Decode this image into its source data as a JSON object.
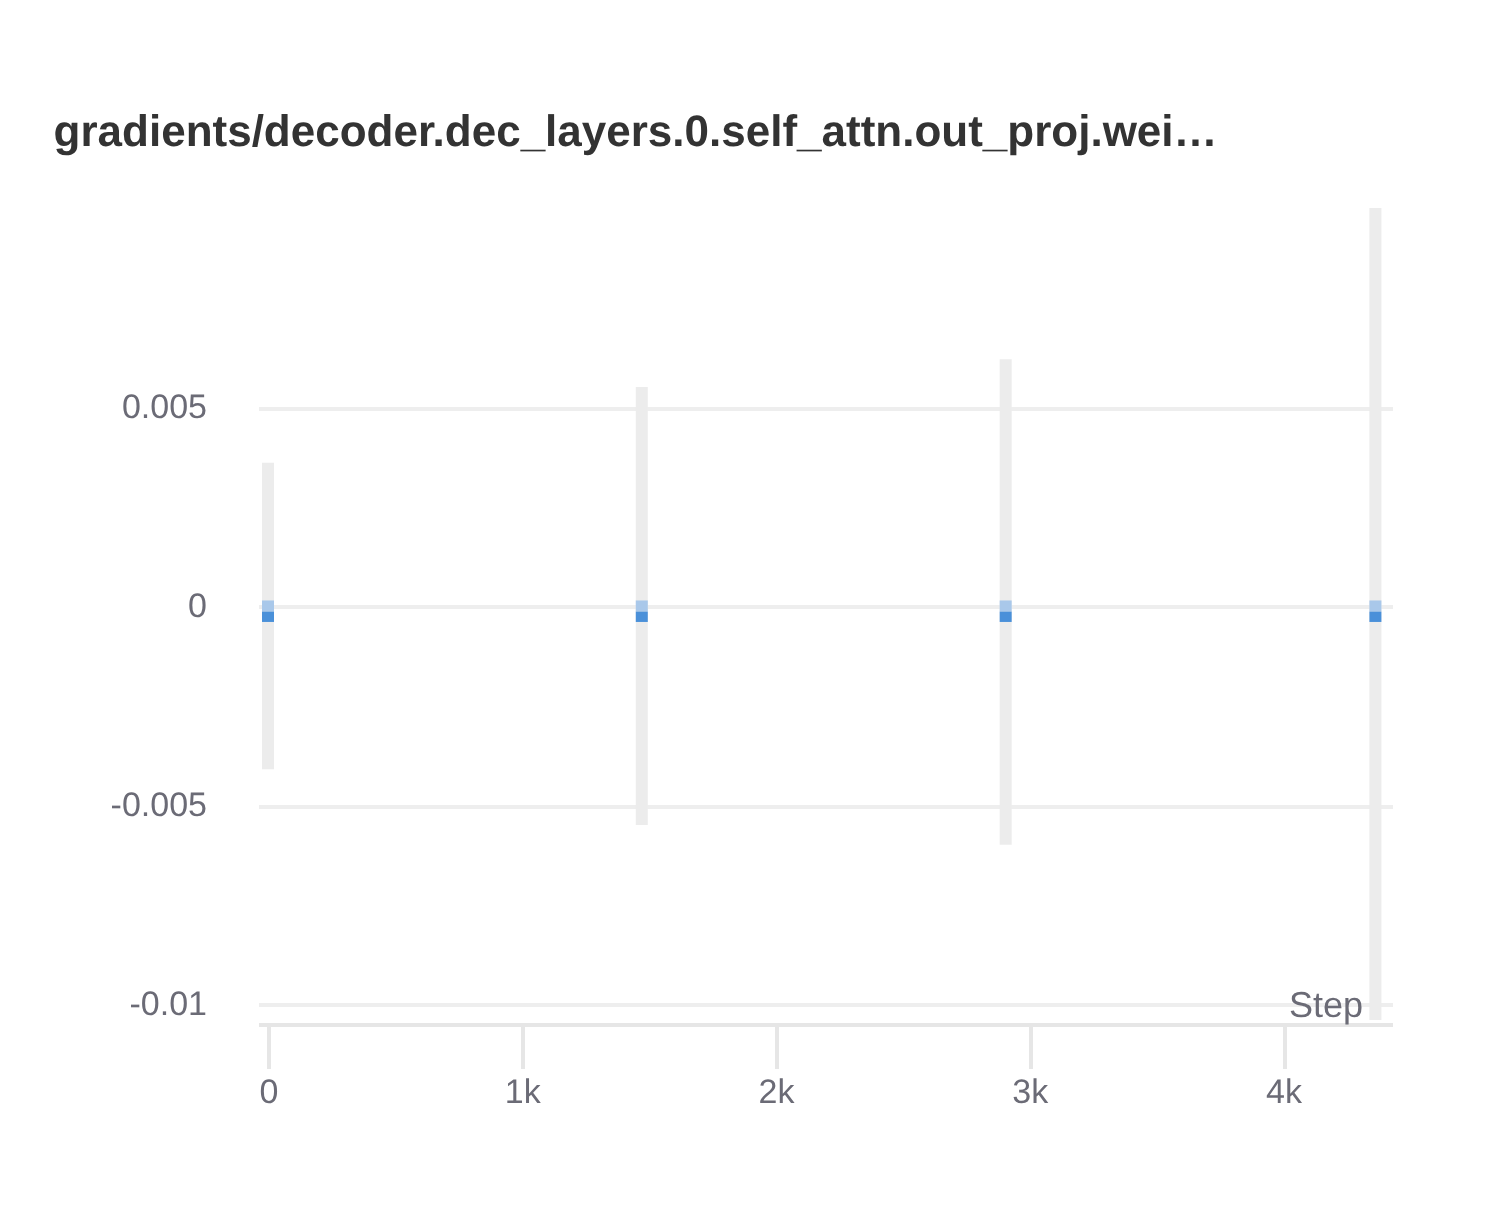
{
  "chart_data": {
    "type": "bar",
    "title": "gradients/decoder.dec_layers.0.self_attn.out_proj.wei…",
    "xlabel": "Step",
    "x": [
      0,
      1473,
      2907,
      4364
    ],
    "series": [
      {
        "color": "#ececec",
        "base": [
          -0.0041,
          -0.0055,
          -0.006,
          -0.0104
        ],
        "values": [
          0.0077,
          0.011,
          0.0122,
          0.0204
        ]
      },
      {
        "color": "#a9c8ea",
        "base": [
          -0.00014,
          -0.00014,
          -0.00014,
          -0.00014
        ],
        "values": [
          0.00028,
          0.00028,
          0.00028,
          0.00028
        ]
      },
      {
        "color": "#4a90d9",
        "base": [
          -0.0004,
          -0.0004,
          -0.0004,
          -0.0004
        ],
        "values": [
          0.00026,
          0.00026,
          0.00026,
          0.00026
        ]
      }
    ],
    "xlim": [
      0,
      4390
    ],
    "ylim": [
      -0.0105,
      0.0101
    ],
    "xticks": [
      0,
      {
        "value": 1000,
        "label": "1k"
      },
      {
        "value": 2000,
        "label": "2k"
      },
      {
        "value": 3000,
        "label": "3k"
      },
      {
        "value": 4000,
        "label": "4k"
      }
    ],
    "yticks": [
      -0.01,
      -0.005,
      0,
      0.005
    ],
    "grid": "y",
    "legend": false
  }
}
